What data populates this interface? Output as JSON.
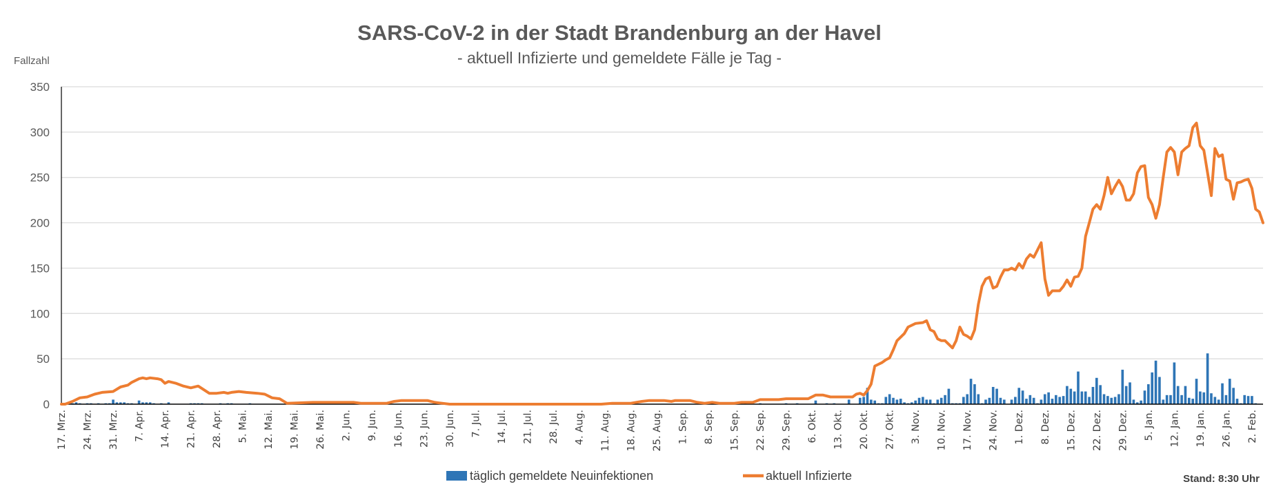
{
  "chart_data": {
    "type": "bar+line",
    "title": "SARS-CoV-2 in der Stadt Brandenburg an der Havel",
    "subtitle": "- aktuell Infizierte und gemeldete Fälle je Tag -",
    "ylabel": "Fallzahl",
    "ylim": [
      0,
      350
    ],
    "yticks": [
      "0",
      "50",
      "100",
      "150",
      "200",
      "250",
      "300",
      "350"
    ],
    "grid": true,
    "x_start_date": "2020-03-17",
    "x_days": 326,
    "x_tick_every_days": 7,
    "xticks": [
      "17. Mrz.",
      "24. Mrz.",
      "31. Mrz.",
      "7. Apr.",
      "14. Apr.",
      "21. Apr.",
      "28. Apr.",
      "5. Mai.",
      "12. Mai.",
      "19. Mai.",
      "26. Mai.",
      "2. Jun.",
      "9. Jun.",
      "16. Jun.",
      "23. Jun.",
      "30. Jun.",
      "7. Jul.",
      "14. Jul.",
      "21. Jul.",
      "28. Jul.",
      "4. Aug.",
      "11. Aug.",
      "18. Aug.",
      "25. Aug.",
      "1. Sep.",
      "8. Sep.",
      "15. Sep.",
      "22. Sep.",
      "29. Sep.",
      "6. Okt.",
      "13. Okt.",
      "20. Okt.",
      "27. Okt.",
      "3. Nov.",
      "10. Nov.",
      "17. Nov.",
      "24. Nov.",
      "1. Dez.",
      "8. Dez.",
      "15. Dez.",
      "22. Dez.",
      "29. Dez.",
      "5. Jan.",
      "12. Jan.",
      "19. Jan.",
      "26. Jan.",
      "2. Feb."
    ],
    "legend_position": "bottom",
    "series": [
      {
        "name": "täglich gemeldete Neuinfektionen",
        "type": "bar",
        "color": "#2E75B6",
        "start_date": "2020-03-17",
        "daily_values": [
          0,
          0,
          0,
          1,
          2,
          1,
          0,
          1,
          1,
          0,
          1,
          0,
          1,
          1,
          5,
          2,
          2,
          2,
          1,
          1,
          0,
          4,
          2,
          2,
          2,
          1,
          0,
          1,
          0,
          2,
          0,
          0,
          0,
          0,
          0,
          1,
          1,
          1,
          1,
          0,
          0,
          0,
          0,
          1,
          0,
          1,
          1,
          0,
          0,
          0,
          0,
          1,
          0,
          0,
          0,
          0,
          0,
          0,
          0,
          0,
          0,
          0,
          0,
          0,
          0,
          0,
          0,
          0,
          0,
          0,
          0,
          0,
          0,
          0,
          0,
          0,
          0,
          0,
          0,
          0,
          0,
          0,
          0,
          0,
          0,
          0,
          0,
          0,
          0,
          0,
          0,
          0,
          0,
          0,
          0,
          0,
          0,
          0,
          0,
          0,
          0,
          0,
          0,
          0,
          0,
          0,
          0,
          0,
          0,
          0,
          0,
          0,
          0,
          0,
          0,
          0,
          0,
          0,
          0,
          0,
          0,
          0,
          0,
          0,
          0,
          0,
          0,
          0,
          0,
          0,
          0,
          0,
          0,
          0,
          0,
          0,
          0,
          0,
          0,
          0,
          0,
          0,
          0,
          0,
          0,
          0,
          0,
          0,
          0,
          0,
          0,
          0,
          0,
          0,
          0,
          0,
          0,
          0,
          0,
          0,
          0,
          0,
          0,
          0,
          0,
          0,
          0,
          0,
          0,
          0,
          0,
          0,
          0,
          0,
          0,
          0,
          0,
          0,
          0,
          0,
          0,
          0,
          0,
          0,
          0,
          1,
          0,
          0,
          0,
          1,
          0,
          0,
          0,
          0,
          0,
          0,
          1,
          0,
          0,
          1,
          0,
          0,
          0,
          0,
          4,
          0,
          0,
          1,
          0,
          1,
          0,
          0,
          0,
          5,
          0,
          0,
          7,
          8,
          18,
          5,
          4,
          1,
          1,
          8,
          11,
          7,
          5,
          6,
          2,
          1,
          2,
          4,
          7,
          8,
          5,
          5,
          1,
          5,
          7,
          10,
          17,
          1,
          1,
          1,
          8,
          11,
          28,
          22,
          11,
          1,
          5,
          7,
          19,
          17,
          7,
          5,
          0,
          5,
          8,
          18,
          15,
          6,
          10,
          7,
          1,
          5,
          11,
          13,
          6,
          10,
          8,
          9,
          20,
          17,
          14,
          36,
          14,
          14,
          8,
          19,
          29,
          21,
          11,
          9,
          7,
          8,
          11,
          38,
          20,
          24,
          5,
          2,
          4,
          15,
          22,
          35,
          48,
          30,
          5,
          10,
          10,
          46,
          20,
          10,
          20,
          7,
          6,
          28,
          14,
          13,
          56,
          12,
          8,
          5,
          23,
          10,
          28,
          18,
          6,
          1,
          10,
          9,
          9,
          1
        ]
      },
      {
        "name": "aktuell Infizierte",
        "type": "line",
        "color": "#ED7D31",
        "points": [
          [
            "2020-03-17",
            0
          ],
          [
            "2020-03-18",
            0
          ],
          [
            "2020-03-20",
            3
          ],
          [
            "2020-03-22",
            7
          ],
          [
            "2020-03-24",
            8
          ],
          [
            "2020-03-26",
            11
          ],
          [
            "2020-03-28",
            13
          ],
          [
            "2020-03-31",
            14
          ],
          [
            "2020-04-02",
            19
          ],
          [
            "2020-04-04",
            21
          ],
          [
            "2020-04-05",
            24
          ],
          [
            "2020-04-07",
            28
          ],
          [
            "2020-04-08",
            29
          ],
          [
            "2020-04-09",
            28
          ],
          [
            "2020-04-10",
            29
          ],
          [
            "2020-04-12",
            28
          ],
          [
            "2020-04-13",
            27
          ],
          [
            "2020-04-14",
            23
          ],
          [
            "2020-04-15",
            25
          ],
          [
            "2020-04-17",
            23
          ],
          [
            "2020-04-19",
            20
          ],
          [
            "2020-04-21",
            18
          ],
          [
            "2020-04-23",
            20
          ],
          [
            "2020-04-26",
            12
          ],
          [
            "2020-04-28",
            12
          ],
          [
            "2020-04-30",
            13
          ],
          [
            "2020-05-01",
            12
          ],
          [
            "2020-05-02",
            13
          ],
          [
            "2020-05-04",
            14
          ],
          [
            "2020-05-06",
            13
          ],
          [
            "2020-05-09",
            12
          ],
          [
            "2020-05-11",
            11
          ],
          [
            "2020-05-13",
            7
          ],
          [
            "2020-05-15",
            6
          ],
          [
            "2020-05-17",
            1
          ],
          [
            "2020-05-24",
            2
          ],
          [
            "2020-06-04",
            2
          ],
          [
            "2020-06-06",
            1
          ],
          [
            "2020-06-13",
            1
          ],
          [
            "2020-06-15",
            3
          ],
          [
            "2020-06-17",
            4
          ],
          [
            "2020-06-24",
            4
          ],
          [
            "2020-06-26",
            2
          ],
          [
            "2020-06-28",
            1
          ],
          [
            "2020-06-30",
            0
          ],
          [
            "2020-08-10",
            0
          ],
          [
            "2020-08-13",
            1
          ],
          [
            "2020-08-18",
            1
          ],
          [
            "2020-08-21",
            3
          ],
          [
            "2020-08-23",
            4
          ],
          [
            "2020-08-27",
            4
          ],
          [
            "2020-08-29",
            3
          ],
          [
            "2020-08-30",
            4
          ],
          [
            "2020-09-03",
            4
          ],
          [
            "2020-09-05",
            2
          ],
          [
            "2020-09-07",
            1
          ],
          [
            "2020-09-09",
            2
          ],
          [
            "2020-09-11",
            1
          ],
          [
            "2020-09-15",
            1
          ],
          [
            "2020-09-17",
            2
          ],
          [
            "2020-09-20",
            2
          ],
          [
            "2020-09-22",
            5
          ],
          [
            "2020-09-27",
            5
          ],
          [
            "2020-09-29",
            6
          ],
          [
            "2020-10-05",
            6
          ],
          [
            "2020-10-07",
            10
          ],
          [
            "2020-10-09",
            10
          ],
          [
            "2020-10-11",
            8
          ],
          [
            "2020-10-17",
            8
          ],
          [
            "2020-10-18",
            11
          ],
          [
            "2020-10-19",
            12
          ],
          [
            "2020-10-20",
            10
          ],
          [
            "2020-10-21",
            15
          ],
          [
            "2020-10-22",
            22
          ],
          [
            "2020-10-23",
            42
          ],
          [
            "2020-10-25",
            46
          ],
          [
            "2020-10-26",
            49
          ],
          [
            "2020-10-27",
            51
          ],
          [
            "2020-10-28",
            60
          ],
          [
            "2020-10-29",
            70
          ],
          [
            "2020-10-31",
            78
          ],
          [
            "2020-11-01",
            85
          ],
          [
            "2020-11-03",
            89
          ],
          [
            "2020-11-05",
            90
          ],
          [
            "2020-11-06",
            92
          ],
          [
            "2020-11-07",
            82
          ],
          [
            "2020-11-08",
            80
          ],
          [
            "2020-11-09",
            72
          ],
          [
            "2020-11-10",
            70
          ],
          [
            "2020-11-11",
            70
          ],
          [
            "2020-11-13",
            62
          ],
          [
            "2020-11-14",
            70
          ],
          [
            "2020-11-15",
            85
          ],
          [
            "2020-11-16",
            77
          ],
          [
            "2020-11-17",
            75
          ],
          [
            "2020-11-18",
            72
          ],
          [
            "2020-11-19",
            82
          ],
          [
            "2020-11-20",
            110
          ],
          [
            "2020-11-21",
            130
          ],
          [
            "2020-11-22",
            138
          ],
          [
            "2020-11-23",
            140
          ],
          [
            "2020-11-24",
            128
          ],
          [
            "2020-11-25",
            130
          ],
          [
            "2020-11-26",
            140
          ],
          [
            "2020-11-27",
            148
          ],
          [
            "2020-11-28",
            148
          ],
          [
            "2020-11-29",
            150
          ],
          [
            "2020-11-30",
            148
          ],
          [
            "2020-12-01",
            155
          ],
          [
            "2020-12-02",
            150
          ],
          [
            "2020-12-03",
            160
          ],
          [
            "2020-12-04",
            165
          ],
          [
            "2020-12-05",
            162
          ],
          [
            "2020-12-06",
            170
          ],
          [
            "2020-12-07",
            178
          ],
          [
            "2020-12-08",
            138
          ],
          [
            "2020-12-09",
            120
          ],
          [
            "2020-12-10",
            125
          ],
          [
            "2020-12-12",
            125
          ],
          [
            "2020-12-13",
            130
          ],
          [
            "2020-12-14",
            137
          ],
          [
            "2020-12-15",
            130
          ],
          [
            "2020-12-16",
            140
          ],
          [
            "2020-12-17",
            141
          ],
          [
            "2020-12-18",
            150
          ],
          [
            "2020-12-19",
            185
          ],
          [
            "2020-12-20",
            200
          ],
          [
            "2020-12-21",
            215
          ],
          [
            "2020-12-22",
            220
          ],
          [
            "2020-12-23",
            215
          ],
          [
            "2020-12-24",
            230
          ],
          [
            "2020-12-25",
            250
          ],
          [
            "2020-12-26",
            232
          ],
          [
            "2020-12-27",
            240
          ],
          [
            "2020-12-28",
            247
          ],
          [
            "2020-12-29",
            240
          ],
          [
            "2020-12-30",
            225
          ],
          [
            "2020-12-31",
            225
          ],
          [
            "2021-01-01",
            232
          ],
          [
            "2021-01-02",
            255
          ],
          [
            "2021-01-03",
            262
          ],
          [
            "2021-01-04",
            263
          ],
          [
            "2021-01-05",
            228
          ],
          [
            "2021-01-06",
            220
          ],
          [
            "2021-01-07",
            205
          ],
          [
            "2021-01-08",
            220
          ],
          [
            "2021-01-09",
            250
          ],
          [
            "2021-01-10",
            278
          ],
          [
            "2021-01-11",
            283
          ],
          [
            "2021-01-12",
            278
          ],
          [
            "2021-01-13",
            253
          ],
          [
            "2021-01-14",
            278
          ],
          [
            "2021-01-15",
            282
          ],
          [
            "2021-01-16",
            285
          ],
          [
            "2021-01-17",
            305
          ],
          [
            "2021-01-18",
            310
          ],
          [
            "2021-01-19",
            285
          ],
          [
            "2021-01-20",
            280
          ],
          [
            "2021-01-21",
            255
          ],
          [
            "2021-01-22",
            230
          ],
          [
            "2021-01-23",
            282
          ],
          [
            "2021-01-24",
            273
          ],
          [
            "2021-01-25",
            275
          ],
          [
            "2021-01-26",
            248
          ],
          [
            "2021-01-27",
            246
          ],
          [
            "2021-01-28",
            226
          ],
          [
            "2021-01-29",
            244
          ],
          [
            "2021-01-30",
            245
          ],
          [
            "2021-01-31",
            247
          ],
          [
            "2021-02-01",
            248
          ],
          [
            "2021-02-02",
            238
          ],
          [
            "2021-02-03",
            215
          ],
          [
            "2021-02-04",
            212
          ],
          [
            "2021-02-05",
            200
          ]
        ]
      }
    ],
    "annotation": "Stand: 8:30 Uhr"
  }
}
